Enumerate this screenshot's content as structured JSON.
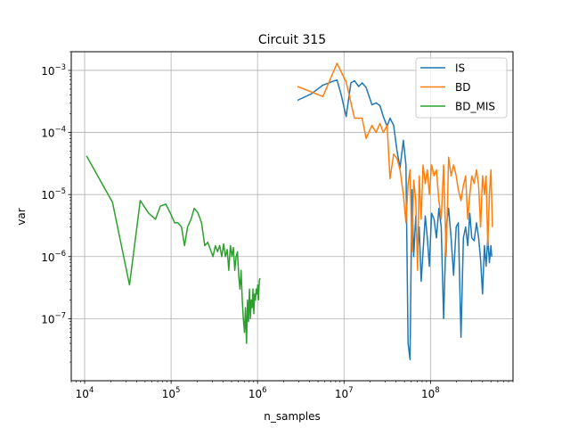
{
  "chart_data": {
    "type": "line",
    "title": "Circuit 315",
    "xlabel": "n_samples",
    "ylabel": "var",
    "xscale": "log",
    "yscale": "log",
    "xlim": [
      7000,
      900000000
    ],
    "ylim": [
      1e-08,
      0.002
    ],
    "grid": true,
    "legend_position": "top-right",
    "x_ticks": [
      {
        "value": 10000,
        "base": "10",
        "exp": "4"
      },
      {
        "value": 100000,
        "base": "10",
        "exp": "5"
      },
      {
        "value": 1000000,
        "base": "10",
        "exp": "6"
      },
      {
        "value": 10000000,
        "base": "10",
        "exp": "7"
      },
      {
        "value": 100000000,
        "base": "10",
        "exp": "8"
      }
    ],
    "y_ticks": [
      {
        "value": 1e-07,
        "base": "10",
        "exp": "−7"
      },
      {
        "value": 1e-06,
        "base": "10",
        "exp": "−6"
      },
      {
        "value": 1e-05,
        "base": "10",
        "exp": "−5"
      },
      {
        "value": 0.0001,
        "base": "10",
        "exp": "−4"
      },
      {
        "value": 0.001,
        "base": "10",
        "exp": "−3"
      }
    ],
    "series": [
      {
        "name": "IS",
        "color": "#1f77b4",
        "x": [
          2900000.0,
          4200000.0,
          5700000.0,
          6700000.0,
          7500000.0,
          8300000.0,
          9300000.0,
          10600000.0,
          12000000.0,
          13200000.0,
          14800000.0,
          16200000.0,
          18000000.0,
          21000000.0,
          23500000.0,
          26000000.0,
          28500000.0,
          31500000.0,
          34000000.0,
          37500000.0,
          41000000.0,
          44500000.0,
          48500000.0,
          52000000.0,
          55000000.0,
          58000000.0,
          61000000.0,
          64000000.0,
          67500000.0,
          71000000.0,
          74000000.0,
          78000000.0,
          82000000.0,
          87000000.0,
          92000000.0,
          97000000.0,
          103000000.0,
          110000000.0,
          117000000.0,
          125000000.0,
          133000000.0,
          142000000.0,
          152000000.0,
          162000000.0,
          173000000.0,
          185000000.0,
          198000000.0,
          210000000.0,
          225000000.0,
          240000000.0,
          255000000.0,
          270000000.0,
          285000000.0,
          300000000.0,
          320000000.0,
          340000000.0,
          360000000.0,
          380000000.0,
          400000000.0,
          420000000.0,
          440000000.0,
          460000000.0,
          480000000.0,
          500000000.0,
          510000000.0
        ],
        "y": [
          0.00033,
          0.00042,
          0.00058,
          0.00063,
          0.00067,
          0.0007,
          0.0004,
          0.00018,
          0.00063,
          0.00068,
          0.00055,
          0.00063,
          0.00053,
          0.00028,
          0.0003,
          0.00027,
          0.00018,
          0.000125,
          0.00017,
          0.00013,
          5e-05,
          2.7e-05,
          7.5e-05,
          3e-05,
          4e-08,
          2.2e-08,
          1.2e-05,
          1e-06,
          4.5e-06,
          1.2e-06,
          3e-06,
          4e-07,
          1.2e-06,
          4.5e-06,
          2e-06,
          7e-07,
          5e-06,
          4e-06,
          2e-06,
          6e-06,
          3e-06,
          1e-07,
          3e-06,
          6e-06,
          2e-06,
          5e-07,
          3e-06,
          3.5e-06,
          5e-08,
          2e-06,
          3e-06,
          1.5e-06,
          5e-06,
          2e-06,
          1.8e-06,
          3.5e-06,
          2e-06,
          9e-07,
          2.5e-07,
          1.5e-06,
          7e-07,
          2e-06,
          8e-07,
          1.5e-06,
          1e-06
        ]
      },
      {
        "name": "BD",
        "color": "#ff7f0e",
        "x": [
          2900000.0,
          5700000.0,
          8300000.0,
          10600000.0,
          13200000.0,
          16200000.0,
          18000000.0,
          21000000.0,
          23500000.0,
          26000000.0,
          28500000.0,
          31500000.0,
          34000000.0,
          37500000.0,
          41000000.0,
          44500000.0,
          48500000.0,
          52000000.0,
          55000000.0,
          58000000.0,
          61000000.0,
          64000000.0,
          67500000.0,
          71000000.0,
          74000000.0,
          78000000.0,
          82000000.0,
          87000000.0,
          92000000.0,
          97000000.0,
          103000000.0,
          110000000.0,
          117000000.0,
          125000000.0,
          133000000.0,
          142000000.0,
          152000000.0,
          162000000.0,
          173000000.0,
          185000000.0,
          198000000.0,
          210000000.0,
          225000000.0,
          240000000.0,
          255000000.0,
          270000000.0,
          285000000.0,
          300000000.0,
          320000000.0,
          340000000.0,
          360000000.0,
          380000000.0,
          400000000.0,
          420000000.0,
          440000000.0,
          460000000.0,
          480000000.0,
          500000000.0,
          520000000.0
        ],
        "y": [
          0.00055,
          0.00038,
          0.0013,
          0.00065,
          0.00017,
          0.00017,
          8e-05,
          0.00013,
          0.0001,
          0.00014,
          0.0001,
          0.00013,
          1.8e-05,
          4.5e-05,
          3.8e-05,
          2.5e-05,
          1e-05,
          3.5e-06,
          1.5e-05,
          2.5e-05,
          1.2e-06,
          1.7e-05,
          8e-06,
          6e-07,
          2e-05,
          4e-06,
          3e-05,
          1.5e-05,
          2.5e-05,
          1e-05,
          3e-05,
          2e-05,
          2.5e-05,
          8e-06,
          4e-06,
          3e-05,
          1e-06,
          4e-05,
          2e-05,
          3e-05,
          2e-05,
          1.2e-05,
          8e-06,
          1.4e-05,
          2e-05,
          4e-06,
          1e-05,
          2e-05,
          1.5e-05,
          2.5e-05,
          1.4e-05,
          3e-06,
          2e-05,
          1e-05,
          2e-05,
          1.5e-06,
          1e-05,
          2.5e-05,
          3e-06
        ]
      },
      {
        "name": "BD_MIS",
        "color": "#2ca02c",
        "x": [
          10500,
          21000,
          33000,
          44000,
          55000,
          66000,
          75000,
          87000,
          98000,
          110000,
          120000,
          132000,
          143000,
          155000,
          170000,
          185000,
          205000,
          225000,
          245000,
          265000,
          285000,
          305000,
          325000,
          345000,
          365000,
          385000,
          405000,
          425000,
          445000,
          465000,
          485000,
          505000,
          525000,
          545000,
          565000,
          585000,
          605000,
          625000,
          645000,
          665000,
          685000,
          705000,
          725000,
          745000,
          765000,
          785000,
          805000,
          825000,
          845000,
          865000,
          885000,
          905000,
          925000,
          945000,
          965000,
          985000,
          1005000,
          1025000,
          1045000,
          1065000
        ],
        "y": [
          4.2e-05,
          7.5e-06,
          3.5e-07,
          8e-06,
          5e-06,
          4e-06,
          6.5e-06,
          7e-06,
          5e-06,
          3.5e-06,
          3.5e-06,
          3e-06,
          1.5e-06,
          3e-06,
          4e-06,
          6e-06,
          5e-06,
          3.5e-06,
          1.5e-06,
          1.7e-06,
          1.3e-06,
          1e-06,
          1.5e-06,
          1.2e-06,
          1.5e-06,
          1e-06,
          1.6e-06,
          1e-06,
          1.3e-06,
          6e-07,
          1.5e-06,
          1e-06,
          1.4e-06,
          6e-07,
          1e-06,
          1.2e-06,
          5e-07,
          3e-07,
          6e-07,
          2e-07,
          1e-07,
          6e-08,
          1.5e-07,
          4e-08,
          2e-07,
          9e-08,
          3e-07,
          1e-07,
          2e-07,
          1.5e-07,
          3e-07,
          1.2e-07,
          2.5e-07,
          2e-07,
          3e-07,
          2.5e-07,
          3.5e-07,
          2e-07,
          4e-07,
          4.5e-07
        ]
      }
    ]
  }
}
